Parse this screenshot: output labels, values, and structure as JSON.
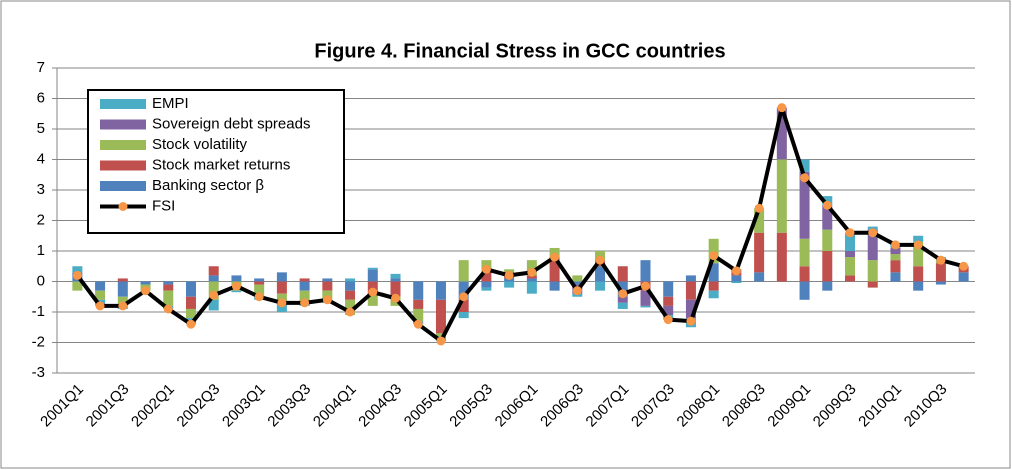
{
  "chart_data": {
    "type": "bar",
    "stacked": true,
    "title": "Figure 4. Financial Stress in GCC countries",
    "categories": [
      "2001Q1",
      null,
      "2001Q3",
      null,
      "2002Q1",
      null,
      "2002Q3",
      null,
      "2003Q1",
      null,
      "2003Q3",
      null,
      "2004Q1",
      null,
      "2004Q3",
      null,
      "2005Q1",
      null,
      "2005Q3",
      null,
      "2006Q1",
      null,
      "2006Q3",
      null,
      "2007Q1",
      null,
      "2007Q3",
      null,
      "2008Q1",
      null,
      "2008Q3",
      null,
      "2009Q1",
      null,
      "2009Q3",
      null,
      "2010Q1",
      null,
      "2010Q3",
      null
    ],
    "series": [
      {
        "name": "EMPI",
        "color": "#4bacc6",
        "values": [
          0.2,
          -0.2,
          -0.1,
          0,
          -0.1,
          -0.2,
          -0.35,
          -0.05,
          -0.1,
          -0.3,
          -0.1,
          -0.1,
          0.1,
          0.05,
          0.15,
          -0.1,
          -0.15,
          -0.2,
          -0.1,
          -0.2,
          -0.4,
          0,
          -0.1,
          -0.3,
          -0.2,
          -0.05,
          -0.15,
          -0.3,
          -0.25,
          -0.05,
          0,
          0,
          0.4,
          0.3,
          0.6,
          0.1,
          0.1,
          0.2,
          0.1,
          0
        ]
      },
      {
        "name": "Sovereign debt spreads",
        "color": "#8064a2",
        "values": [
          0,
          0,
          0,
          0,
          0,
          0,
          0,
          0,
          0,
          0,
          0,
          0,
          0,
          0,
          0,
          0,
          0,
          0,
          0,
          0,
          0,
          0,
          -0.3,
          0,
          -0.2,
          -0.5,
          -0.3,
          -0.6,
          0,
          0.1,
          0,
          1.7,
          2.2,
          0.8,
          0.2,
          1.0,
          0.2,
          0,
          0,
          0
        ]
      },
      {
        "name": "Stock volatility",
        "color": "#9bbb59",
        "values": [
          -0.3,
          -0.3,
          -0.3,
          -0.2,
          -0.5,
          -0.3,
          -0.6,
          -0.3,
          -0.4,
          -0.3,
          -0.4,
          -0.3,
          -0.5,
          -0.4,
          -0.3,
          -0.4,
          -0.1,
          0.7,
          0.4,
          0.1,
          0.5,
          0.3,
          0.2,
          0.3,
          0,
          0,
          0,
          0,
          0.8,
          0,
          0.8,
          2.4,
          0.9,
          0.7,
          0.6,
          0.7,
          0.2,
          0.8,
          0.1,
          0
        ]
      },
      {
        "name": "Stock market returns",
        "color": "#c0504d",
        "values": [
          0,
          0,
          0.1,
          0,
          -0.2,
          -0.4,
          0.3,
          0,
          -0.1,
          -0.4,
          0.1,
          -0.3,
          -0.3,
          -0.4,
          -0.5,
          -0.3,
          -1.1,
          -0.4,
          0.3,
          0.2,
          0.1,
          0.8,
          0,
          0.2,
          0.5,
          -0.3,
          -0.3,
          -0.6,
          -0.3,
          0.1,
          1.3,
          1.6,
          0.5,
          1.0,
          0.2,
          -0.2,
          0.4,
          0.5,
          0.6,
          0.2
        ]
      },
      {
        "name": "Banking sector β",
        "color": "#4f81bd",
        "values": [
          0.3,
          -0.3,
          -0.5,
          -0.1,
          -0.1,
          -0.5,
          0.2,
          0.2,
          0.1,
          0.3,
          -0.3,
          0.1,
          -0.3,
          0.4,
          0.1,
          -0.6,
          -0.6,
          -0.6,
          -0.2,
          0.1,
          0.1,
          -0.3,
          -0.1,
          0.5,
          -0.5,
          0.7,
          -0.5,
          0.2,
          0.6,
          0.2,
          0.3,
          0,
          -0.6,
          -0.3,
          0,
          0,
          0.3,
          -0.3,
          -0.1,
          0.3
        ]
      }
    ],
    "line": {
      "name": "FSI",
      "color": "#000000",
      "marker_color": "#f79646",
      "values": [
        0.2,
        -0.8,
        -0.8,
        -0.3,
        -0.9,
        -1.4,
        -0.45,
        -0.15,
        -0.5,
        -0.7,
        -0.7,
        -0.6,
        -1.0,
        -0.35,
        -0.55,
        -1.4,
        -1.95,
        -0.5,
        0.4,
        0.2,
        0.3,
        0.8,
        -0.3,
        0.7,
        -0.4,
        -0.15,
        -1.25,
        -1.3,
        0.85,
        0.35,
        2.4,
        5.7,
        3.4,
        2.5,
        1.6,
        1.6,
        1.2,
        1.2,
        0.7,
        0.5
      ]
    },
    "ylim": [
      -3,
      7
    ],
    "yticks": [
      -3,
      -2,
      -1,
      0,
      1,
      2,
      3,
      4,
      5,
      6,
      7
    ],
    "grid": true,
    "legend": "upper-left"
  }
}
